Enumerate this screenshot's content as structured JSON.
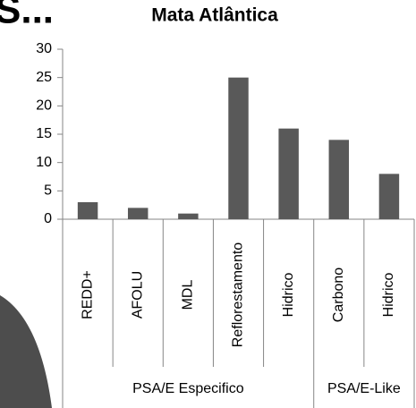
{
  "slide_title_fragment": "S...",
  "chart_data": {
    "type": "bar",
    "title": "Mata Atlântica",
    "categories": [
      "REDD+",
      "AFOLU",
      "MDL",
      "Reflorestamento",
      "Hidrico",
      "Carbono",
      "Hidrico"
    ],
    "values": [
      3,
      2,
      1,
      25,
      16,
      14,
      8
    ],
    "color": "#595959",
    "groups": [
      {
        "name": "PSA/E Especifico",
        "size": 5
      },
      {
        "name": "PSA/E-Like",
        "size": 2
      }
    ],
    "ylim": [
      0,
      30
    ],
    "yticks": [
      0,
      5,
      10,
      15,
      20,
      25,
      30
    ],
    "grid": false
  }
}
